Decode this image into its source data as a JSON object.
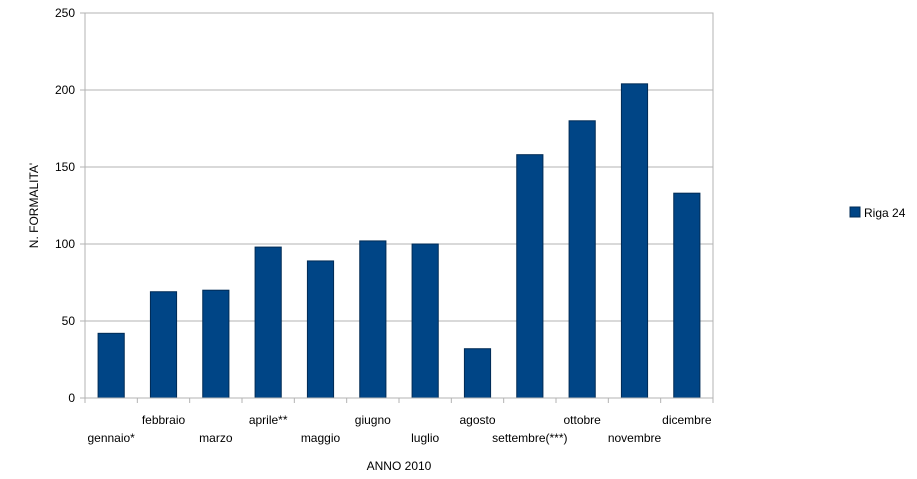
{
  "chart_data": {
    "type": "bar",
    "title": "",
    "xlabel": "ANNO 2010",
    "ylabel": "N. FORMALITA'",
    "ylim": [
      0,
      250
    ],
    "yticks": [
      0,
      50,
      100,
      150,
      200,
      250
    ],
    "grid": true,
    "legend_position": "right",
    "categories": [
      "gennaio*",
      "febbraio",
      "marzo",
      "aprile**",
      "maggio",
      "giugno",
      "luglio",
      "agosto",
      "settembre(***)",
      "ottobre",
      "novembre",
      "dicembre"
    ],
    "series": [
      {
        "name": "Riga 24",
        "color": "#004586",
        "values": [
          42,
          69,
          70,
          98,
          89,
          102,
          100,
          32,
          158,
          180,
          204,
          133
        ]
      }
    ]
  }
}
